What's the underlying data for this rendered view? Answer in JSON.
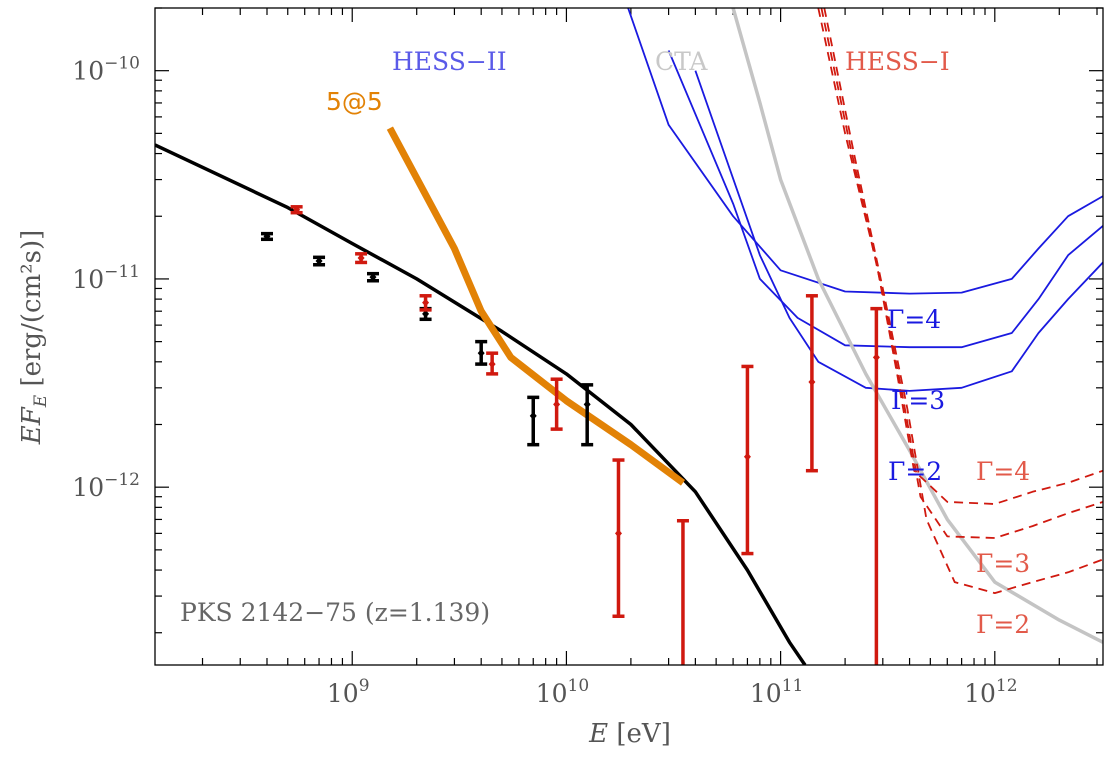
{
  "chart_data": {
    "type": "line",
    "xscale": "log",
    "yscale": "log",
    "xlim": [
      120000000.0,
      3200000000000.0
    ],
    "ylim": [
      1.4e-13,
      2e-10
    ],
    "xlabel": {
      "main": "E",
      "unit": " [eV]"
    },
    "ylabel": {
      "main": "EF",
      "sub": "E",
      "unit": " [erg/(cm²s)]"
    },
    "x_ticks": [
      {
        "base": "10",
        "exp": "9",
        "value": 1000000000.0
      },
      {
        "base": "10",
        "exp": "10",
        "value": 10000000000.0
      },
      {
        "base": "10",
        "exp": "11",
        "value": 100000000000.0
      },
      {
        "base": "10",
        "exp": "12",
        "value": 1000000000000.0
      }
    ],
    "y_ticks": [
      {
        "base": "10",
        "exp": "−12",
        "value": 1e-12
      },
      {
        "base": "10",
        "exp": "−11",
        "value": 1e-11
      },
      {
        "base": "10",
        "exp": "−10",
        "value": 1e-10
      }
    ],
    "source_label": "PKS 2142−75 (z=1.139)",
    "colors": {
      "black": "#000000",
      "red": "#d0190f",
      "blue": "#1a1ae0",
      "orange": "#e28206",
      "grey": "#c4c4c4"
    },
    "labels": {
      "hess2": "HESS−II",
      "cta": "CTA",
      "hess1": "HESS−I",
      "fivefive": "5@5",
      "gamma_blue": [
        "Γ=4",
        "Γ=3",
        "Γ=2"
      ],
      "gamma_red": [
        "Γ=4",
        "Γ=3",
        "Γ=2"
      ]
    },
    "series": [
      {
        "id": "model",
        "style": "black-solid",
        "points": [
          [
            120000000.0,
            4.4e-11
          ],
          [
            500000000.0,
            2.2e-11
          ],
          [
            1000000000.0,
            1.48e-11
          ],
          [
            2000000000.0,
            1e-11
          ],
          [
            5000000000.0,
            5.6e-12
          ],
          [
            10000000000.0,
            3.5e-12
          ],
          [
            20000000000.0,
            2e-12
          ],
          [
            40000000000.0,
            9.5e-13
          ],
          [
            70000000000.0,
            4e-13
          ],
          [
            110000000000.0,
            1.8e-13
          ],
          [
            130000000000.0,
            1.4e-13
          ]
        ]
      },
      {
        "id": "fivefive",
        "style": "orange-thick",
        "points": [
          [
            1500000000.0,
            5.3e-11
          ],
          [
            3000000000.0,
            1.4e-11
          ],
          [
            4000000000.0,
            7e-12
          ],
          [
            5500000000.0,
            4.2e-12
          ],
          [
            10000000000.0,
            2.6e-12
          ],
          [
            20000000000.0,
            1.6e-12
          ],
          [
            35000000000.0,
            1.05e-12
          ]
        ]
      },
      {
        "id": "hess2_g4",
        "style": "blue-solid",
        "points": [
          [
            18000000000.0,
            2.5e-10
          ],
          [
            30000000000.0,
            5.5e-11
          ],
          [
            60000000000.0,
            2e-11
          ],
          [
            100000000000.0,
            1.1e-11
          ],
          [
            200000000000.0,
            8.7e-12
          ],
          [
            400000000000.0,
            8.5e-12
          ],
          [
            700000000000.0,
            8.6e-12
          ],
          [
            1200000000000.0,
            1e-11
          ],
          [
            1600000000000.0,
            1.4e-11
          ],
          [
            2200000000000.0,
            2e-11
          ],
          [
            3200000000000.0,
            2.5e-11
          ]
        ]
      },
      {
        "id": "hess2_g3",
        "style": "blue-solid",
        "points": [
          [
            30000000000.0,
            1.25e-10
          ],
          [
            60000000000.0,
            2.3e-11
          ],
          [
            80000000000.0,
            1e-11
          ],
          [
            120000000000.0,
            6.5e-12
          ],
          [
            200000000000.0,
            4.8e-12
          ],
          [
            400000000000.0,
            4.7e-12
          ],
          [
            700000000000.0,
            4.7e-12
          ],
          [
            1200000000000.0,
            5.5e-12
          ],
          [
            1600000000000.0,
            8e-12
          ],
          [
            2200000000000.0,
            1.3e-11
          ],
          [
            3200000000000.0,
            1.8e-11
          ]
        ]
      },
      {
        "id": "hess2_g2",
        "style": "blue-solid",
        "points": [
          [
            40000000000.0,
            1e-10
          ],
          [
            80000000000.0,
            1.3e-11
          ],
          [
            110000000000.0,
            6.5e-12
          ],
          [
            150000000000.0,
            4e-12
          ],
          [
            250000000000.0,
            3e-12
          ],
          [
            400000000000.0,
            2.9e-12
          ],
          [
            700000000000.0,
            3e-12
          ],
          [
            1200000000000.0,
            3.6e-12
          ],
          [
            1600000000000.0,
            5.5e-12
          ],
          [
            2200000000000.0,
            8e-12
          ],
          [
            3200000000000.0,
            1.2e-11
          ]
        ]
      },
      {
        "id": "cta",
        "style": "grey-solid",
        "points": [
          [
            60000000000.0,
            2e-10
          ],
          [
            80000000000.0,
            7e-11
          ],
          [
            100000000000.0,
            3e-11
          ],
          [
            150000000000.0,
            1e-11
          ],
          [
            250000000000.0,
            3.5e-12
          ],
          [
            400000000000.0,
            1.5e-12
          ],
          [
            600000000000.0,
            7e-13
          ],
          [
            1000000000000.0,
            3.5e-13
          ],
          [
            2000000000000.0,
            2.3e-13
          ],
          [
            3200000000000.0,
            1.8e-13
          ]
        ]
      },
      {
        "id": "hess1_g4",
        "style": "red-dashed",
        "points": [
          [
            150000000000.0,
            2e-10
          ],
          [
            200000000000.0,
            5e-11
          ],
          [
            280000000000.0,
            1.2e-11
          ],
          [
            350000000000.0,
            3.5e-12
          ],
          [
            420000000000.0,
            1.2e-12
          ],
          [
            600000000000.0,
            8.5e-13
          ],
          [
            1000000000000.0,
            8.3e-13
          ],
          [
            1500000000000.0,
            9.5e-13
          ],
          [
            2200000000000.0,
            1.05e-12
          ],
          [
            3200000000000.0,
            1.2e-12
          ]
        ]
      },
      {
        "id": "hess1_g3",
        "style": "red-dashed",
        "points": [
          [
            155000000000.0,
            2e-10
          ],
          [
            210000000000.0,
            4.5e-11
          ],
          [
            290000000000.0,
            1e-11
          ],
          [
            370000000000.0,
            2.8e-12
          ],
          [
            450000000000.0,
            9e-13
          ],
          [
            600000000000.0,
            5.8e-13
          ],
          [
            1000000000000.0,
            5.7e-13
          ],
          [
            1500000000000.0,
            6.5e-13
          ],
          [
            2200000000000.0,
            7.5e-13
          ],
          [
            3200000000000.0,
            8.5e-13
          ]
        ]
      },
      {
        "id": "hess1_g2",
        "style": "red-dashed",
        "points": [
          [
            160000000000.0,
            2e-10
          ],
          [
            220000000000.0,
            4e-11
          ],
          [
            300000000000.0,
            9e-12
          ],
          [
            390000000000.0,
            2.4e-12
          ],
          [
            480000000000.0,
            7e-13
          ],
          [
            650000000000.0,
            3.5e-13
          ],
          [
            1000000000000.0,
            3.1e-13
          ],
          [
            1500000000000.0,
            3.5e-13
          ],
          [
            2200000000000.0,
            3.9e-13
          ],
          [
            3200000000000.0,
            4.5e-13
          ]
        ]
      }
    ],
    "points": [
      {
        "color": "black",
        "x": 400000000.0,
        "y": 1.6e-11,
        "lo": 1.55e-11,
        "hi": 1.65e-11
      },
      {
        "color": "black",
        "x": 700000000.0,
        "y": 1.22e-11,
        "lo": 1.17e-11,
        "hi": 1.27e-11
      },
      {
        "color": "black",
        "x": 1250000000.0,
        "y": 1.02e-11,
        "lo": 9.8e-12,
        "hi": 1.06e-11
      },
      {
        "color": "black",
        "x": 2200000000.0,
        "y": 6.8e-12,
        "lo": 6.4e-12,
        "hi": 7.2e-12
      },
      {
        "color": "black",
        "x": 4000000000.0,
        "y": 4.4e-12,
        "lo": 3.9e-12,
        "hi": 5e-12
      },
      {
        "color": "black",
        "x": 7000000000.0,
        "y": 2.2e-12,
        "lo": 1.6e-12,
        "hi": 2.7e-12
      },
      {
        "color": "black",
        "x": 12500000000.0,
        "y": 2.5e-12,
        "lo": 1.6e-12,
        "hi": 3.1e-12
      },
      {
        "color": "red",
        "x": 550000000.0,
        "y": 2.15e-11,
        "lo": 2.08e-11,
        "hi": 2.22e-11
      },
      {
        "color": "red",
        "x": 1100000000.0,
        "y": 1.26e-11,
        "lo": 1.2e-11,
        "hi": 1.32e-11
      },
      {
        "color": "red",
        "x": 2200000000.0,
        "y": 7.7e-12,
        "lo": 7.1e-12,
        "hi": 8.3e-12
      },
      {
        "color": "red",
        "x": 4500000000.0,
        "y": 3.9e-12,
        "lo": 3.5e-12,
        "hi": 4.4e-12
      },
      {
        "color": "red",
        "x": 9000000000.0,
        "y": 2.5e-12,
        "lo": 1.9e-12,
        "hi": 3.3e-12
      },
      {
        "color": "red",
        "x": 17500000000.0,
        "y": 6e-13,
        "lo": 2.4e-13,
        "hi": 1.35e-12
      },
      {
        "color": "red",
        "x": 35000000000.0,
        "y": null,
        "lo": 1.4e-13,
        "hi": 6.9e-13
      },
      {
        "color": "red",
        "x": 70000000000.0,
        "y": 1.4e-12,
        "lo": 4.8e-13,
        "hi": 3.8e-12
      },
      {
        "color": "red",
        "x": 140000000000.0,
        "y": 3.2e-12,
        "lo": 1.2e-12,
        "hi": 8.3e-12
      },
      {
        "color": "red",
        "x": 280000000000.0,
        "y": 4.2e-12,
        "lo": 1.4e-13,
        "hi": 7.2e-12
      }
    ]
  }
}
